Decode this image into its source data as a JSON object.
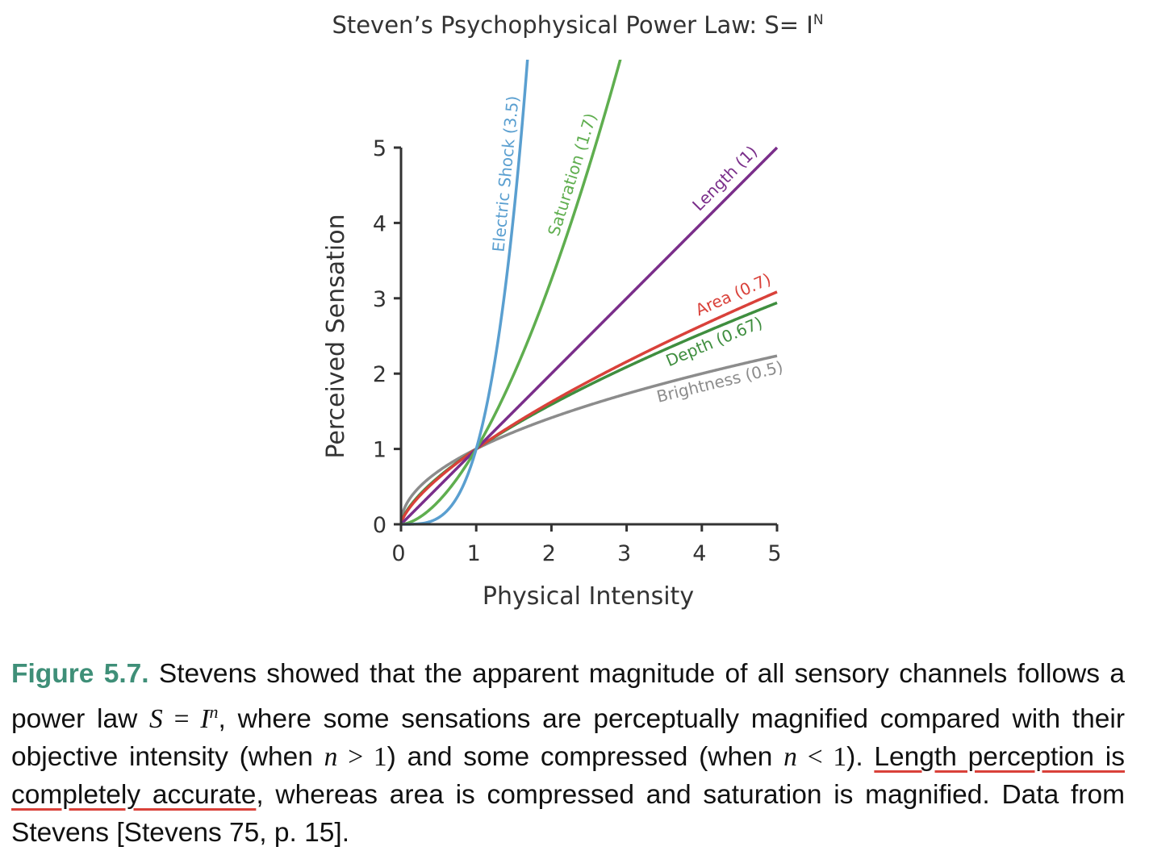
{
  "chart_data": {
    "type": "line",
    "title": "Steven’s Psychophysical Power Law: S= I",
    "title_superscript": "N",
    "xlabel": "Physical Intensity",
    "ylabel": "Perceived Sensation",
    "xlim": [
      0,
      5
    ],
    "ylim": [
      0,
      5
    ],
    "x_ticks": [
      "0",
      "1",
      "2",
      "3",
      "4",
      "5"
    ],
    "y_ticks": [
      "0",
      "1",
      "2",
      "3",
      "4",
      "5"
    ],
    "grid": false,
    "legend": "inline labels",
    "series": [
      {
        "name": "Electric Shock (3.5)",
        "exponent": 3.5,
        "color": "#5a9fd0",
        "points": [
          [
            0,
            0
          ],
          [
            0.5,
            0.088
          ],
          [
            1,
            1
          ],
          [
            1.25,
            2.18
          ],
          [
            1.5,
            4.13
          ],
          [
            1.75,
            7.1
          ]
        ]
      },
      {
        "name": "Saturation (1.7)",
        "exponent": 1.7,
        "color": "#5fae4f",
        "points": [
          [
            0,
            0
          ],
          [
            0.5,
            0.31
          ],
          [
            1,
            1
          ],
          [
            1.5,
            1.99
          ],
          [
            2,
            3.25
          ],
          [
            2.5,
            4.74
          ],
          [
            3,
            6.47
          ]
        ]
      },
      {
        "name": "Length (1)",
        "exponent": 1,
        "color": "#7a2e8a",
        "points": [
          [
            0,
            0
          ],
          [
            1,
            1
          ],
          [
            2,
            2
          ],
          [
            3,
            3
          ],
          [
            4,
            4
          ],
          [
            5,
            5
          ]
        ]
      },
      {
        "name": "Area (0.7)",
        "exponent": 0.7,
        "color": "#d9413a",
        "points": [
          [
            0,
            0
          ],
          [
            0.5,
            0.62
          ],
          [
            1,
            1
          ],
          [
            2,
            1.62
          ],
          [
            3,
            2.16
          ],
          [
            4,
            2.64
          ],
          [
            5,
            3.09
          ]
        ]
      },
      {
        "name": "Depth (0.67)",
        "exponent": 0.67,
        "color": "#3f8e3f",
        "points": [
          [
            0,
            0
          ],
          [
            0.5,
            0.63
          ],
          [
            1,
            1
          ],
          [
            2,
            1.59
          ],
          [
            3,
            2.09
          ],
          [
            4,
            2.53
          ],
          [
            5,
            2.94
          ]
        ]
      },
      {
        "name": "Brightness (0.5)",
        "exponent": 0.5,
        "color": "#8c8c8c",
        "points": [
          [
            0,
            0
          ],
          [
            0.5,
            0.71
          ],
          [
            1,
            1
          ],
          [
            2,
            1.41
          ],
          [
            3,
            1.73
          ],
          [
            4,
            2.0
          ],
          [
            5,
            2.24
          ]
        ]
      }
    ]
  },
  "caption": {
    "figure_label": "Figure 5.7.",
    "part1": " Stevens showed that the apparent magnitude of all sensory channels follows a power law ",
    "eq1_lhs": "S",
    "eq1_op": " = ",
    "eq1_base": "I",
    "eq1_exp": "n",
    "part2": ", where some sensations are perceptually magnified compared with their objective intensity (when ",
    "cond1_var": "n",
    "cond1_rest": " > 1",
    "part3": ") and some compressed (when ",
    "cond2_var": "n",
    "cond2_rest": " < 1",
    "part4": "). ",
    "highlight": "Length perception is completely accurate",
    "part5": ", whereas area is compressed and saturation is magnified. Data from Stevens [Stevens 75, p. 15]."
  }
}
